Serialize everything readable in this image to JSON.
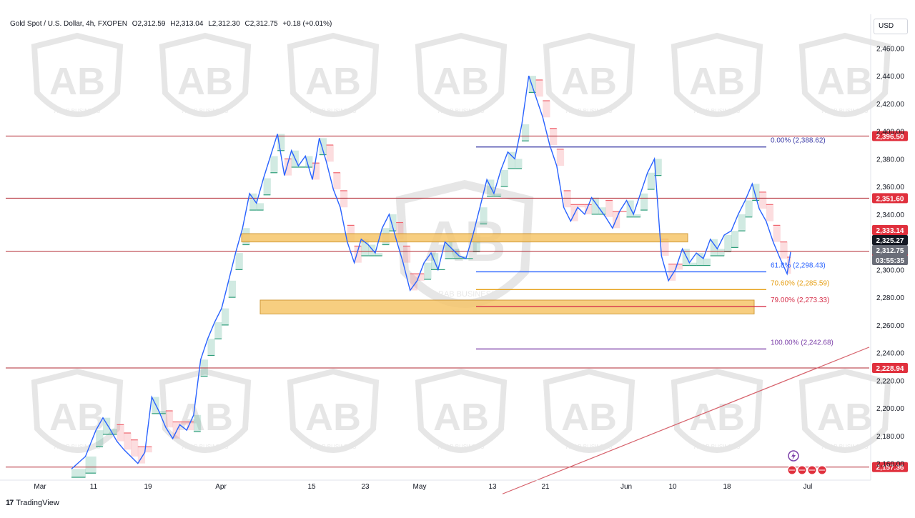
{
  "header": {
    "symbol": "Gold Spot / U.S. Dollar, 4h, FXOPEN",
    "open": "O2,312.59",
    "high": "H2,313.04",
    "low": "L2,312.30",
    "close": "C2,312.75",
    "change": "+0.18 (+0.01%)"
  },
  "currency_button": "USD",
  "brand": {
    "logo_glyph": "17",
    "name": "TradingView"
  },
  "watermark": {
    "name": "ARAB BUSINESS",
    "glyph": "AB"
  },
  "colors": {
    "price_line": "#2962ff",
    "resistance_line": "#b22833",
    "zone_fill": "#f6c66b",
    "bull_fill": "#2e9e7a",
    "bear_fill": "#f0636d",
    "fib_top": "#3f3fa8",
    "fib_618": "#2962ff",
    "fib_706": "#e6a11a",
    "fib_79": "#d6304a",
    "fib_100": "#7b3fa8",
    "trendline": "#d6606a"
  },
  "chart_data": {
    "type": "line",
    "title": "Gold Spot / U.S. Dollar, 4h, FXOPEN",
    "xlabel": "",
    "ylabel": "",
    "ylim": [
      2150,
      2480
    ],
    "y_ticks": [
      "2,460.00",
      "2,440.00",
      "2,420.00",
      "2,400.00",
      "2,380.00",
      "2,360.00",
      "2,340.00",
      "2,320.00",
      "2,300.00",
      "2,280.00",
      "2,260.00",
      "2,240.00",
      "2,220.00",
      "2,200.00",
      "2,180.00",
      "2,160.00"
    ],
    "x_ticks": [
      "Mar",
      "11",
      "19",
      "Apr",
      "15",
      "23",
      "May",
      "13",
      "21",
      "Jun",
      "10",
      "18",
      "Jul"
    ],
    "series": [
      {
        "values": [
          [
            0,
            2156
          ],
          [
            4,
            2165
          ],
          [
            7,
            2184
          ],
          [
            9,
            2193
          ],
          [
            11,
            2185
          ],
          [
            13,
            2176
          ],
          [
            15,
            2170
          ],
          [
            17,
            2165
          ],
          [
            19,
            2160
          ],
          [
            21,
            2168
          ],
          [
            23,
            2208
          ],
          [
            25,
            2198
          ],
          [
            27,
            2186
          ],
          [
            29,
            2178
          ],
          [
            31,
            2188
          ],
          [
            33,
            2184
          ],
          [
            35,
            2195
          ],
          [
            37,
            2235
          ],
          [
            39,
            2250
          ],
          [
            41,
            2262
          ],
          [
            43,
            2272
          ],
          [
            45,
            2292
          ],
          [
            47,
            2312
          ],
          [
            49,
            2330
          ],
          [
            51,
            2355
          ],
          [
            53,
            2348
          ],
          [
            55,
            2366
          ],
          [
            57,
            2382
          ],
          [
            59,
            2398
          ],
          [
            61,
            2368
          ],
          [
            63,
            2386
          ],
          [
            65,
            2375
          ],
          [
            67,
            2382
          ],
          [
            69,
            2365
          ],
          [
            71,
            2395
          ],
          [
            73,
            2378
          ],
          [
            75,
            2358
          ],
          [
            77,
            2345
          ],
          [
            79,
            2320
          ],
          [
            81,
            2305
          ],
          [
            83,
            2322
          ],
          [
            85,
            2318
          ],
          [
            87,
            2312
          ],
          [
            89,
            2330
          ],
          [
            91,
            2340
          ],
          [
            93,
            2322
          ],
          [
            95,
            2305
          ],
          [
            97,
            2285
          ],
          [
            99,
            2292
          ],
          [
            101,
            2305
          ],
          [
            103,
            2312
          ],
          [
            105,
            2300
          ],
          [
            107,
            2320
          ],
          [
            109,
            2315
          ],
          [
            111,
            2310
          ],
          [
            113,
            2308
          ],
          [
            115,
            2325
          ],
          [
            117,
            2345
          ],
          [
            119,
            2365
          ],
          [
            121,
            2355
          ],
          [
            123,
            2372
          ],
          [
            125,
            2385
          ],
          [
            127,
            2380
          ],
          [
            129,
            2405
          ],
          [
            131,
            2440
          ],
          [
            133,
            2425
          ],
          [
            135,
            2410
          ],
          [
            137,
            2390
          ],
          [
            139,
            2375
          ],
          [
            141,
            2345
          ],
          [
            143,
            2335
          ],
          [
            145,
            2345
          ],
          [
            147,
            2340
          ],
          [
            149,
            2352
          ],
          [
            151,
            2345
          ],
          [
            153,
            2338
          ],
          [
            155,
            2330
          ],
          [
            157,
            2342
          ],
          [
            159,
            2350
          ],
          [
            161,
            2340
          ],
          [
            163,
            2355
          ],
          [
            165,
            2370
          ],
          [
            167,
            2380
          ],
          [
            169,
            2310
          ],
          [
            171,
            2292
          ],
          [
            173,
            2300
          ],
          [
            175,
            2315
          ],
          [
            177,
            2305
          ],
          [
            179,
            2312
          ],
          [
            181,
            2308
          ],
          [
            183,
            2322
          ],
          [
            185,
            2315
          ],
          [
            187,
            2325
          ],
          [
            189,
            2328
          ],
          [
            191,
            2340
          ],
          [
            193,
            2350
          ],
          [
            195,
            2362
          ],
          [
            197,
            2344
          ],
          [
            199,
            2335
          ],
          [
            201,
            2320
          ],
          [
            203,
            2308
          ],
          [
            205,
            2297
          ],
          [
            206,
            2312.75
          ]
        ]
      }
    ],
    "horizontal_levels": [
      "2,396.50",
      "2,351.60",
      "2,313.29",
      "2,228.94",
      "2,157.36"
    ],
    "price_labels": [
      "2,333.14",
      "2,325.27",
      "2,312.75",
      "03:55:35"
    ],
    "fibonacci": [
      {
        "label": "0.00% (2,388.62)",
        "value": 2388.62
      },
      {
        "label": "61.8% (2,298.43)",
        "value": 2298.43
      },
      {
        "label": "70.60% (2,285.59)",
        "value": 2285.59
      },
      {
        "label": "79.00% (2,273.33)",
        "value": 2273.33
      },
      {
        "label": "100.00% (2,242.68)",
        "value": 2242.68
      }
    ],
    "zones": [
      {
        "from": 2320,
        "to": 2326
      },
      {
        "from": 2268,
        "to": 2278
      }
    ],
    "trendline": {
      "from": 2138,
      "to": 2244
    },
    "grid": false,
    "legend_position": "top-left"
  }
}
